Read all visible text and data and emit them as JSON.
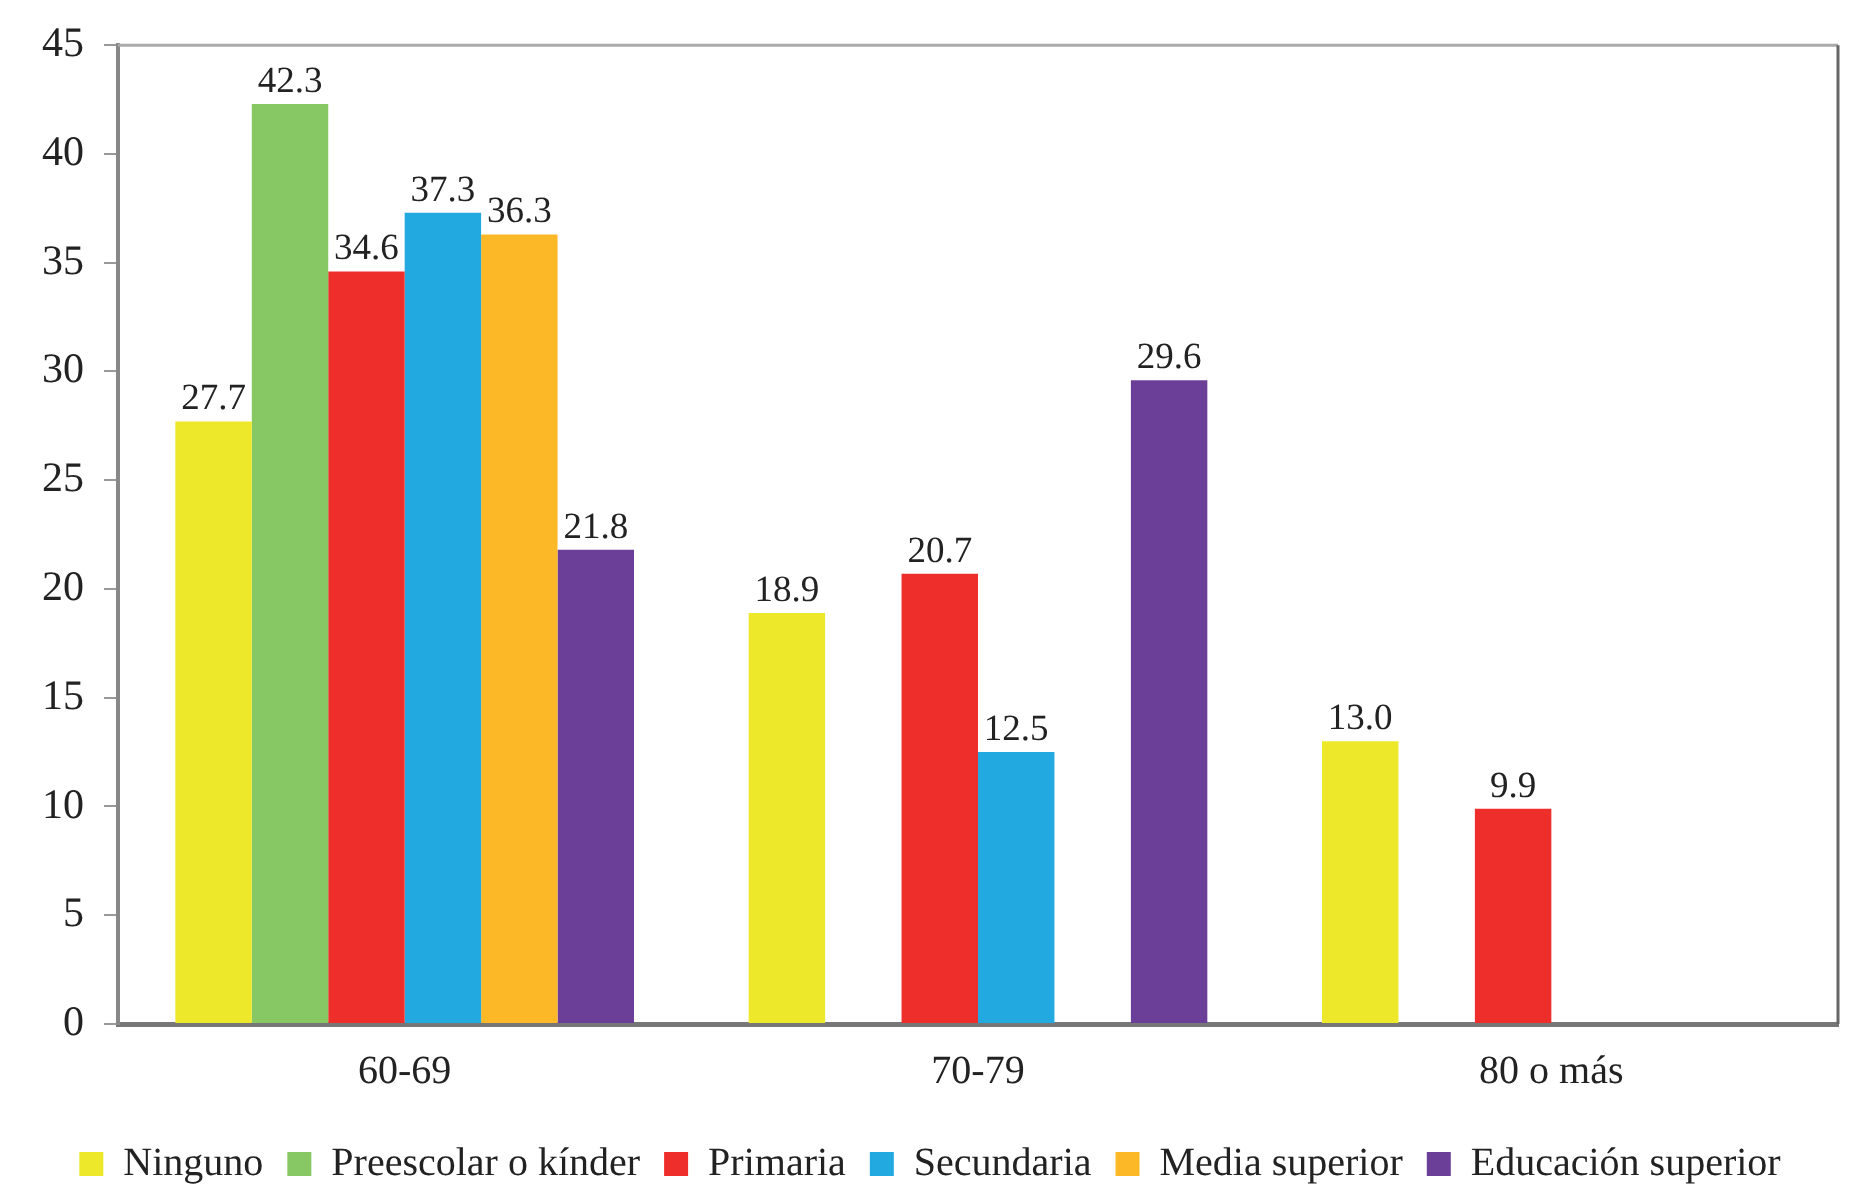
{
  "chart_data": {
    "type": "bar",
    "categories": [
      "60-69",
      "70-79",
      "80 o más"
    ],
    "series": [
      {
        "name": "Ninguno",
        "color": "#ede82a",
        "values": [
          27.7,
          18.9,
          13.0
        ],
        "value_labels": [
          "27.7",
          "18.9",
          "13.0"
        ]
      },
      {
        "name": "Preescolar o kínder",
        "color": "#88c864",
        "values": [
          42.3,
          null,
          null
        ],
        "value_labels": [
          "42.3",
          null,
          null
        ]
      },
      {
        "name": "Primaria",
        "color": "#ee2e2b",
        "values": [
          34.6,
          20.7,
          9.9
        ],
        "value_labels": [
          "34.6",
          "20.7",
          "9.9"
        ]
      },
      {
        "name": "Secundaria",
        "color": "#22aae0",
        "values": [
          37.3,
          12.5,
          null
        ],
        "value_labels": [
          "37.3",
          "12.5",
          null
        ]
      },
      {
        "name": "Media superior",
        "color": "#fdb827",
        "values": [
          36.3,
          null,
          null
        ],
        "value_labels": [
          "36.3",
          null,
          null
        ]
      },
      {
        "name": "Educación superior",
        "color": "#6b3f98",
        "values": [
          21.8,
          29.6,
          null
        ],
        "value_labels": [
          "21.8",
          "29.6",
          null
        ]
      }
    ],
    "ylim": [
      0,
      45
    ],
    "yticks": [
      0,
      5,
      10,
      15,
      20,
      25,
      30,
      35,
      40,
      45
    ],
    "grid": false,
    "legend": "bottom"
  }
}
